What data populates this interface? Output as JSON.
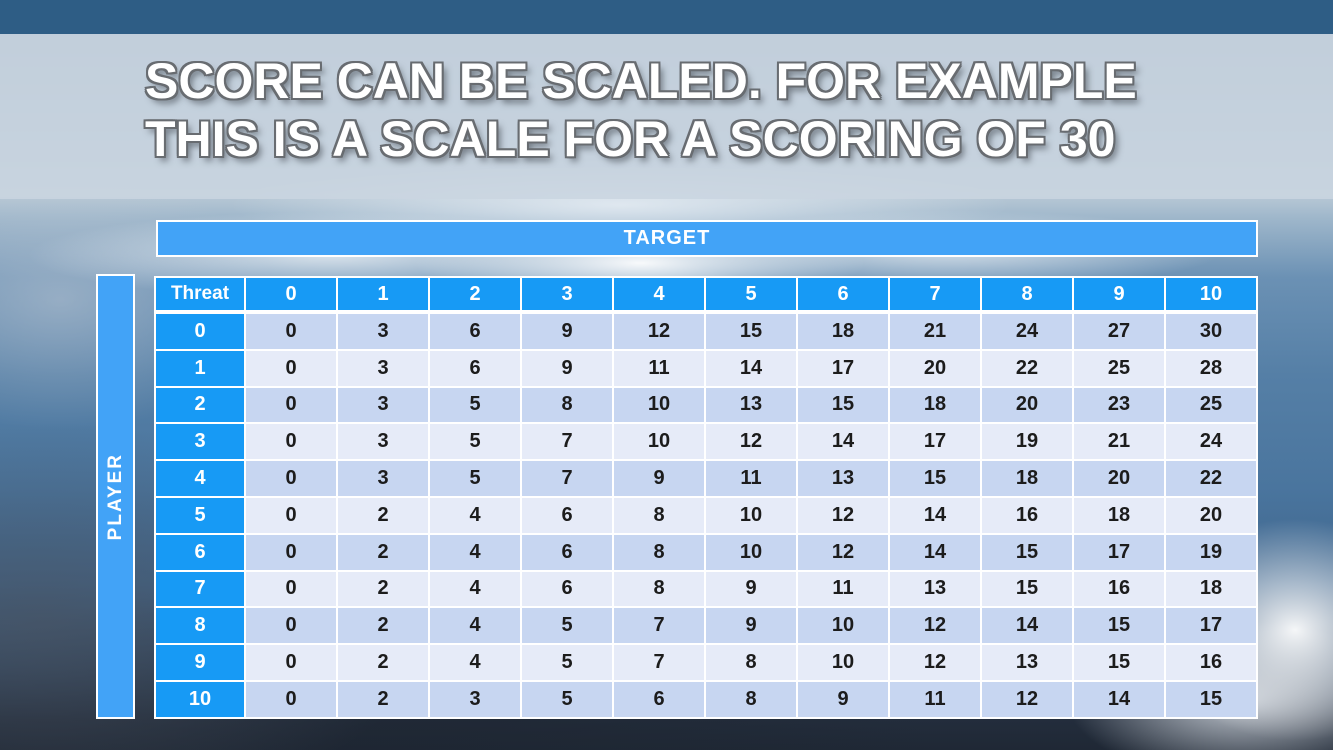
{
  "slide": {
    "title_line1": "SCORE CAN BE SCALED. FOR EXAMPLE",
    "title_line2": "THIS IS A SCALE FOR A SCORING OF 30"
  },
  "matrix": {
    "top_header": "TARGET",
    "left_header": "PLAYER",
    "corner_label": "Threat",
    "column_headers": [
      "0",
      "1",
      "2",
      "3",
      "4",
      "5",
      "6",
      "7",
      "8",
      "9",
      "10"
    ],
    "row_headers": [
      "0",
      "1",
      "2",
      "3",
      "4",
      "5",
      "6",
      "7",
      "8",
      "9",
      "10"
    ],
    "rows": [
      [
        0,
        3,
        6,
        9,
        12,
        15,
        18,
        21,
        24,
        27,
        30
      ],
      [
        0,
        3,
        6,
        9,
        11,
        14,
        17,
        20,
        22,
        25,
        28
      ],
      [
        0,
        3,
        5,
        8,
        10,
        13,
        15,
        18,
        20,
        23,
        25
      ],
      [
        0,
        3,
        5,
        7,
        10,
        12,
        14,
        17,
        19,
        21,
        24
      ],
      [
        0,
        3,
        5,
        7,
        9,
        11,
        13,
        15,
        18,
        20,
        22
      ],
      [
        0,
        2,
        4,
        6,
        8,
        10,
        12,
        14,
        16,
        18,
        20
      ],
      [
        0,
        2,
        4,
        6,
        8,
        10,
        12,
        14,
        15,
        17,
        19
      ],
      [
        0,
        2,
        4,
        6,
        8,
        9,
        11,
        13,
        15,
        16,
        18
      ],
      [
        0,
        2,
        4,
        5,
        7,
        9,
        10,
        12,
        14,
        15,
        17
      ],
      [
        0,
        2,
        4,
        5,
        7,
        8,
        10,
        12,
        13,
        15,
        16
      ],
      [
        0,
        2,
        3,
        5,
        6,
        8,
        9,
        11,
        12,
        14,
        15
      ]
    ]
  },
  "colors": {
    "top_bar": "#2e5d85",
    "title_band": "#c9d5e0",
    "banner_blue": "#42a3f7",
    "header_blue": "#179af5",
    "row_even": "#c7d6f1",
    "row_odd": "#e6ebf8",
    "cell_text": "#1c1c1c"
  }
}
